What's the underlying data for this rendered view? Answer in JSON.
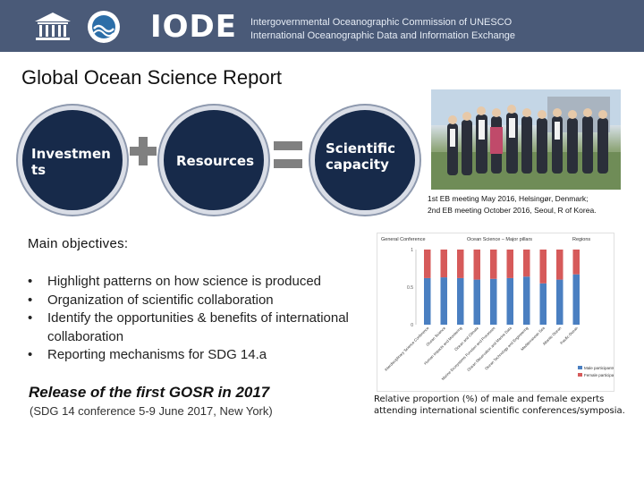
{
  "header": {
    "unesco_logo_text": "UNESCO",
    "ioc_logo_icon": "ioc-circle-logo-icon",
    "iode_logo_text": "IODE",
    "line1": "Intergovernmental Oceanographic Commission of UNESCO",
    "line2": "International Oceanographic Data and Information Exchange"
  },
  "title": "Global Ocean Science Report",
  "equation": {
    "term1": "Investmen ts",
    "term2": "Resources",
    "result": "Scientific capacity"
  },
  "photo": {
    "caption_line1": "1st EB meeting May 2016, Helsingør, Denmark;",
    "caption_line2": "2nd EB meeting October 2016, Seoul, R of Korea."
  },
  "objectives": {
    "heading": "Main objectives:",
    "items": [
      "Highlight patterns on how science is produced",
      "Organization of scientific collaboration",
      "Identify the opportunities & benefits of international collaboration",
      "Reporting mechanisms for SDG 14.a"
    ]
  },
  "release": {
    "title": "Release of the first GOSR in 2017",
    "subtitle": "(SDG 14 conference 5-9 June 2017, New York)"
  },
  "chart_caption": "Relative proportion (%) of male and female experts attending international scientific conferences/symposia.",
  "chart_data": {
    "type": "bar",
    "title": "Ocean Science – Major pillars",
    "group_labels": [
      "General Conference",
      "Regions"
    ],
    "categories": [
      "Interdisciplinary Science Conference",
      "Ocean Science",
      "Human impacts and Monitoring",
      "Ocean and Climate",
      "Marine Ecosystems Function and Processes",
      "Ocean Observation and Marine Data",
      "Ocean Technology and Engineering",
      "Mediterranean Sea",
      "Atlantic Ocean",
      "Pacific Ocean"
    ],
    "series": [
      {
        "name": "Male participants",
        "values": [
          0.62,
          0.63,
          0.62,
          0.6,
          0.61,
          0.62,
          0.64,
          0.55,
          0.6,
          0.67
        ]
      },
      {
        "name": "Female participants",
        "values": [
          0.38,
          0.37,
          0.38,
          0.4,
          0.39,
          0.38,
          0.36,
          0.45,
          0.4,
          0.33
        ]
      }
    ],
    "colors": {
      "male": "#4a7fc1",
      "female": "#d65a5a"
    },
    "ylim": [
      0,
      1
    ],
    "yticks": [
      "0",
      "0.5",
      "1"
    ],
    "legend": "bottom-left",
    "grid": false
  }
}
